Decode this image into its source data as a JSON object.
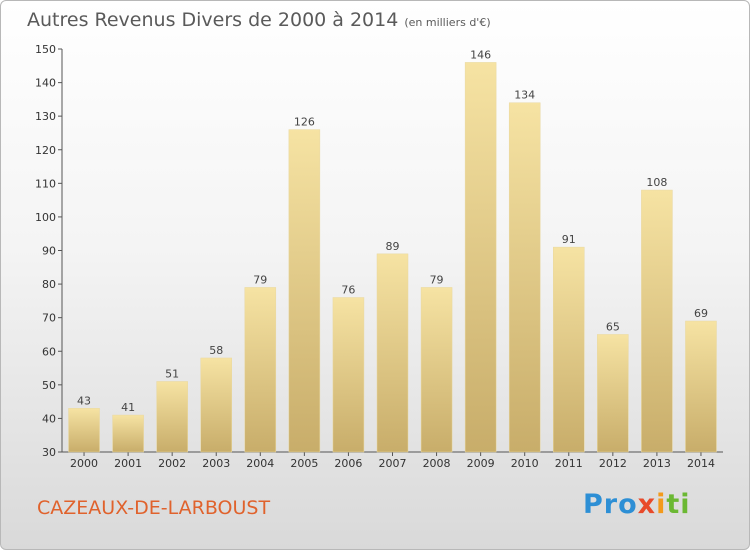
{
  "header": {
    "title": "Autres Revenus Divers de 2000 à 2014",
    "subtitle": "(en milliers d'€)"
  },
  "footer": {
    "place": "CAZEAUX-DE-LARBOUST",
    "logo_parts": [
      "Pro",
      "x",
      "i",
      "ti"
    ]
  },
  "colors": {
    "bar_light": "#f6e3a3",
    "bar_dark": "#c8ad6a",
    "place_text": "#e0622c"
  },
  "chart_data": {
    "type": "bar",
    "title": "Autres Revenus Divers de 2000 à 2014",
    "subtitle": "(en milliers d'€)",
    "categories": [
      "2000",
      "2001",
      "2002",
      "2003",
      "2004",
      "2005",
      "2006",
      "2007",
      "2008",
      "2009",
      "2010",
      "2011",
      "2012",
      "2013",
      "2014"
    ],
    "values": [
      43,
      41,
      51,
      58,
      79,
      126,
      76,
      89,
      79,
      146,
      134,
      91,
      65,
      108,
      69
    ],
    "ylim": [
      30,
      150
    ],
    "yticks": [
      30,
      40,
      50,
      60,
      70,
      80,
      90,
      100,
      110,
      120,
      130,
      140,
      150
    ],
    "grid": false,
    "data_labels": true
  }
}
